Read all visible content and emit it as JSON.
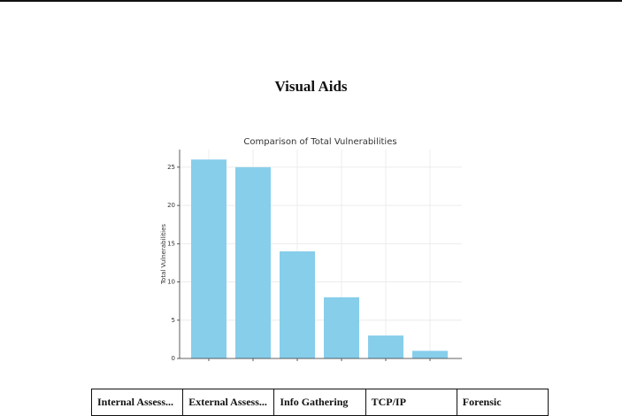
{
  "heading": "Visual Aids",
  "chart_data": {
    "type": "bar",
    "title": "Comparison of Total Vulnerabilities",
    "y_label": "Total Vulnerabilities",
    "values": [
      26,
      25,
      14,
      8,
      3,
      1
    ],
    "color": "#87ceeb",
    "ylim": [
      0,
      27.3
    ],
    "yticks": [
      0,
      5,
      10,
      15,
      20,
      25
    ],
    "grid": true
  },
  "table": {
    "rows": [
      [
        "Internal Assess...",
        "External Assess...",
        "Info Gathering",
        "TCP/IP",
        "Forensic"
      ]
    ]
  }
}
